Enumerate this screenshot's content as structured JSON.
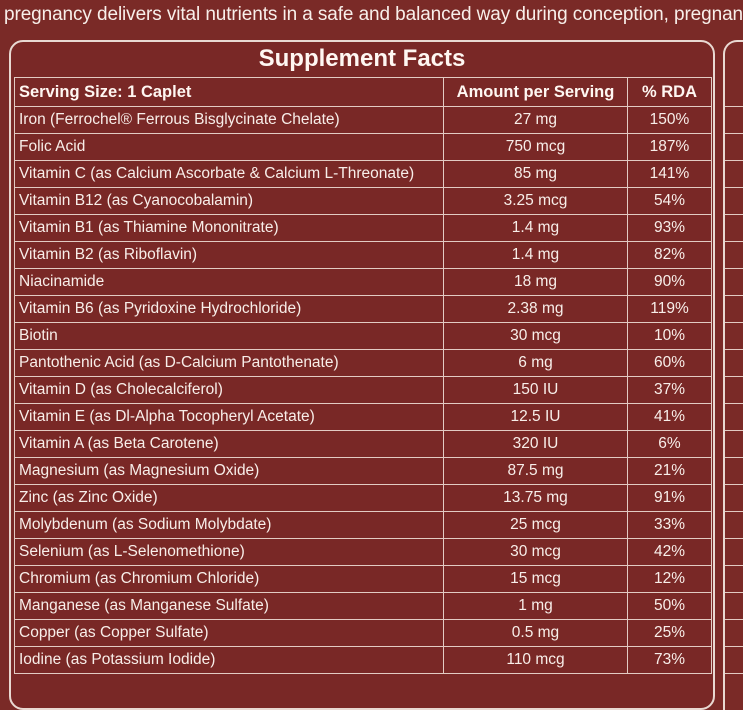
{
  "intro_text": "pregnancy delivers vital nutrients in a safe and balanced way during conception, pregnancy",
  "title": "Supplement Facts",
  "table": {
    "headers": {
      "serving": "Serving Size: 1 Caplet",
      "amount": "Amount per Serving",
      "rda": "% RDA"
    },
    "rows": [
      {
        "name": "Iron (Ferrochel® Ferrous Bisglycinate Chelate)",
        "amount": "27 mg",
        "rda": "150%"
      },
      {
        "name": "Folic Acid",
        "amount": "750 mcg",
        "rda": "187%"
      },
      {
        "name": "Vitamin C (as Calcium Ascorbate & Calcium L-Threonate)",
        "amount": "85 mg",
        "rda": "141%"
      },
      {
        "name": "Vitamin B12 (as Cyanocobalamin)",
        "amount": "3.25 mcg",
        "rda": "54%"
      },
      {
        "name": "Vitamin B1 (as Thiamine Mononitrate)",
        "amount": "1.4 mg",
        "rda": "93%"
      },
      {
        "name": "Vitamin B2 (as Riboflavin)",
        "amount": "1.4 mg",
        "rda": "82%"
      },
      {
        "name": "Niacinamide",
        "amount": "18 mg",
        "rda": "90%"
      },
      {
        "name": "Vitamin B6 (as Pyridoxine Hydrochloride)",
        "amount": "2.38 mg",
        "rda": "119%"
      },
      {
        "name": "Biotin",
        "amount": "30 mcg",
        "rda": "10%"
      },
      {
        "name": "Pantothenic Acid (as D-Calcium Pantothenate)",
        "amount": "6 mg",
        "rda": "60%"
      },
      {
        "name": "Vitamin D (as Cholecalciferol)",
        "amount": "150 IU",
        "rda": "37%"
      },
      {
        "name": "Vitamin E (as Dl-Alpha Tocopheryl Acetate)",
        "amount": "12.5 IU",
        "rda": "41%"
      },
      {
        "name": "Vitamin A (as Beta Carotene)",
        "amount": "320 IU",
        "rda": "6%"
      },
      {
        "name": "Magnesium (as Magnesium Oxide)",
        "amount": "87.5 mg",
        "rda": "21%"
      },
      {
        "name": "Zinc (as Zinc Oxide)",
        "amount": "13.75 mg",
        "rda": "91%"
      },
      {
        "name": "Molybdenum (as Sodium Molybdate)",
        "amount": "25 mcg",
        "rda": "33%"
      },
      {
        "name": "Selenium (as L-Selenomethione)",
        "amount": "30 mcg",
        "rda": "42%"
      },
      {
        "name": "Chromium (as Chromium Chloride)",
        "amount": "15 mcg",
        "rda": "12%"
      },
      {
        "name": "Manganese (as Manganese Sulfate)",
        "amount": "1 mg",
        "rda": "50%"
      },
      {
        "name": "Copper (as Copper Sulfate)",
        "amount": "0.5 mg",
        "rda": "25%"
      },
      {
        "name": "Iodine (as Potassium Iodide)",
        "amount": "110 mcg",
        "rda": "73%"
      }
    ]
  }
}
